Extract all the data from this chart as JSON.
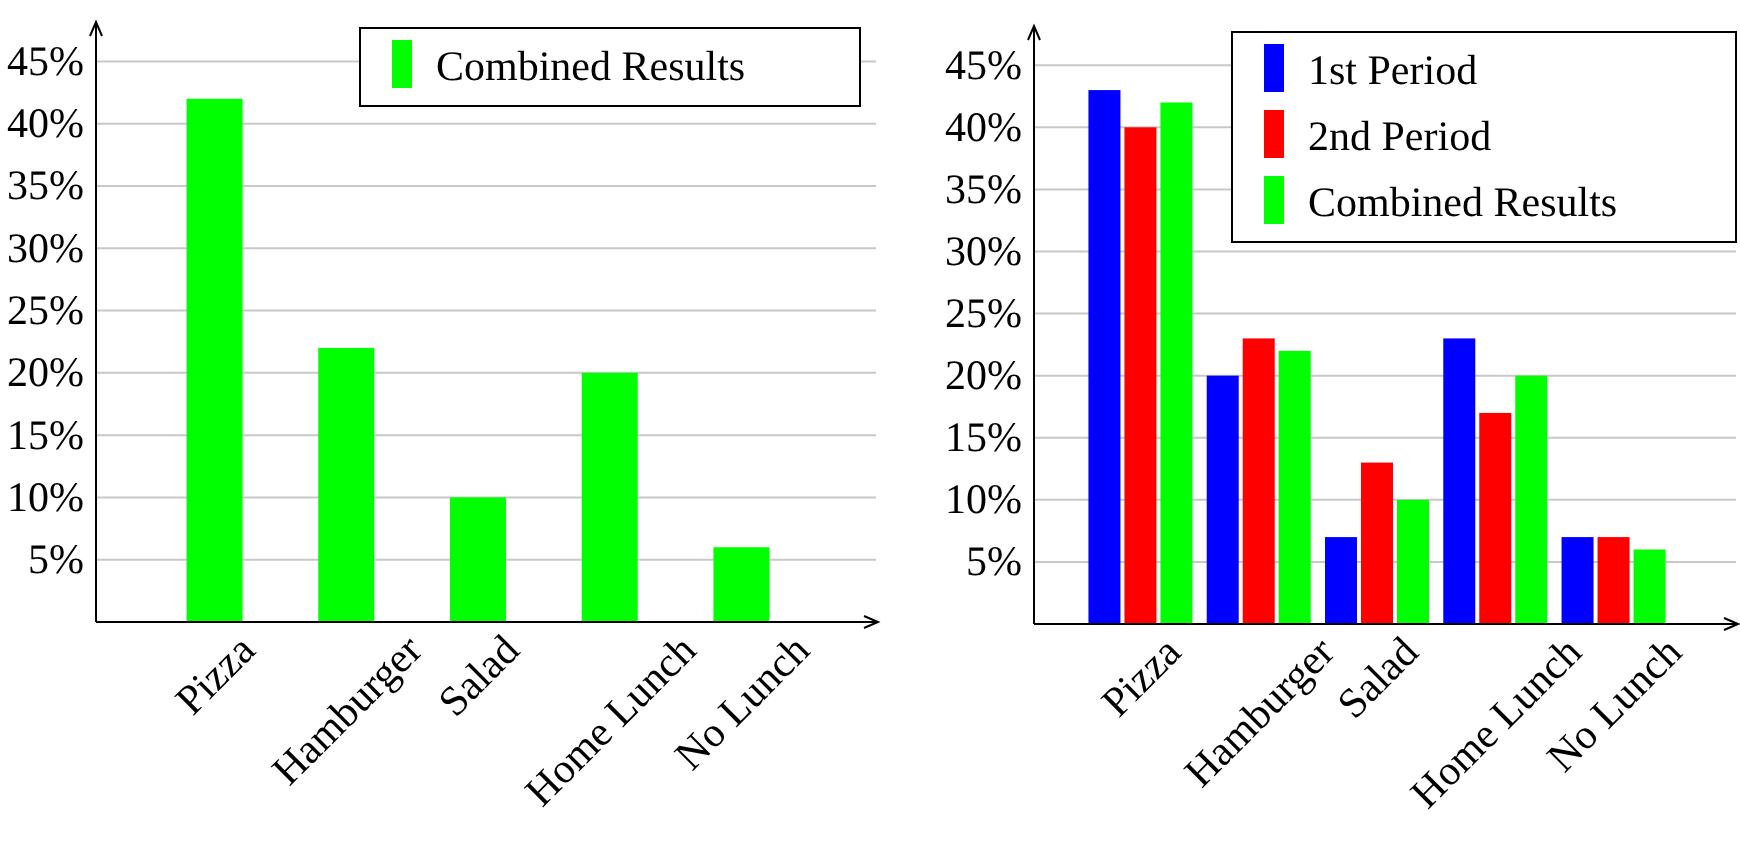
{
  "chart_data": [
    {
      "type": "bar",
      "categories": [
        "Pizza",
        "Hamburger",
        "Salad",
        "Home Lunch",
        "No Lunch"
      ],
      "series": [
        {
          "name": "Combined Results",
          "color": "#00ff00",
          "values": [
            42,
            22,
            10,
            20,
            6
          ]
        }
      ],
      "ylim": [
        0,
        48
      ],
      "yticks": [
        {
          "value": 5,
          "label": "5%"
        },
        {
          "value": 10,
          "label": "10%"
        },
        {
          "value": 15,
          "label": "15%"
        },
        {
          "value": 20,
          "label": "20%"
        },
        {
          "value": 25,
          "label": "25%"
        },
        {
          "value": 30,
          "label": "30%"
        },
        {
          "value": 35,
          "label": "35%"
        },
        {
          "value": 40,
          "label": "40%"
        },
        {
          "value": 45,
          "label": "45%"
        }
      ],
      "grid": "y",
      "legend": "top right"
    },
    {
      "type": "bar",
      "categories": [
        "Pizza",
        "Hamburger",
        "Salad",
        "Home Lunch",
        "No Lunch"
      ],
      "series": [
        {
          "name": "1st Period",
          "color": "#0000ff",
          "values": [
            43,
            20,
            7,
            23,
            7
          ]
        },
        {
          "name": "2nd Period",
          "color": "#ff0000",
          "values": [
            40,
            23,
            13,
            17,
            7
          ]
        },
        {
          "name": "Combined Results",
          "color": "#00ff00",
          "values": [
            42,
            22,
            10,
            20,
            6
          ]
        }
      ],
      "ylim": [
        0,
        48
      ],
      "yticks": [
        {
          "value": 5,
          "label": "5%"
        },
        {
          "value": 10,
          "label": "10%"
        },
        {
          "value": 15,
          "label": "15%"
        },
        {
          "value": 20,
          "label": "20%"
        },
        {
          "value": 25,
          "label": "25%"
        },
        {
          "value": 30,
          "label": "30%"
        },
        {
          "value": 35,
          "label": "35%"
        },
        {
          "value": 40,
          "label": "40%"
        },
        {
          "value": 45,
          "label": "45%"
        }
      ],
      "grid": "y",
      "legend": "top right"
    }
  ]
}
